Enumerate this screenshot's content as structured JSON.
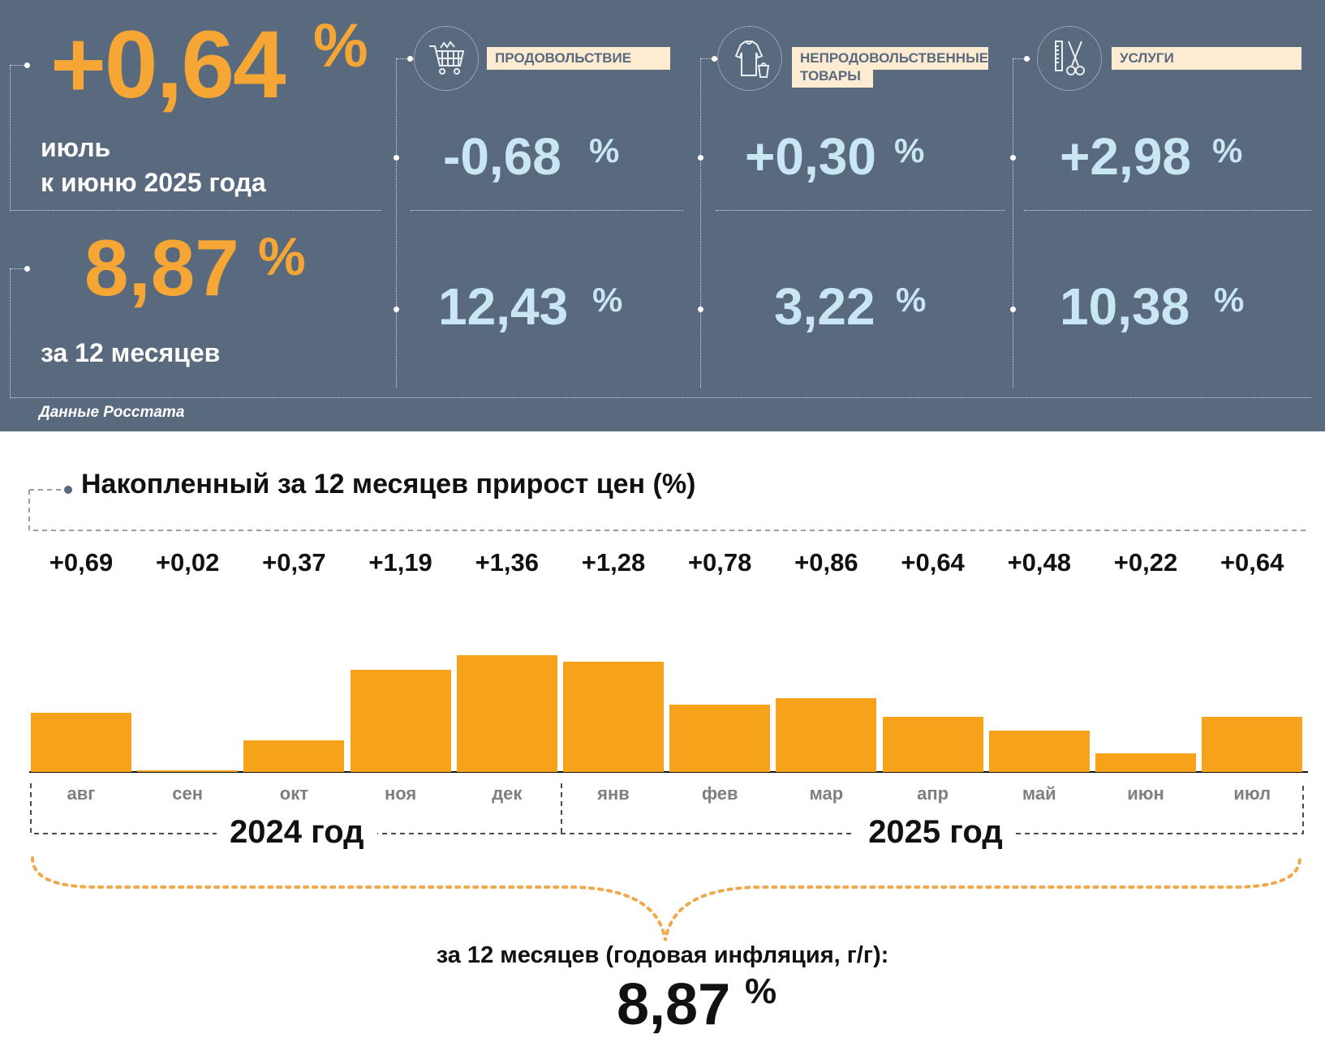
{
  "summary": {
    "month_value": "+0,64",
    "month_pct": "%",
    "month_label_line1": "июль",
    "month_label_line2": "к июню 2025 года",
    "year_value": "8,87",
    "year_pct": "%",
    "year_label": "за 12 месяцев",
    "source": "Данные Росстата",
    "accent_color": "#f6a634",
    "panel_color": "#596a7e",
    "value_color": "#c9e6f4"
  },
  "categories": [
    {
      "name": "ПРОДОВОЛЬСТВИЕ",
      "name_line2": "",
      "icon": "shopping-cart-icon",
      "month": "-0,68",
      "year": "12,43",
      "pct": "%"
    },
    {
      "name": "НЕПРОДОВОЛЬСТВЕННЫЕ",
      "name_line2": "ТОВАРЫ",
      "icon": "clothes-icon",
      "month": "+0,30",
      "year": "3,22",
      "pct": "%"
    },
    {
      "name": "УСЛУГИ",
      "name_line2": "",
      "icon": "scissors-comb-icon",
      "month": "+2,98",
      "year": "10,38",
      "pct": "%"
    }
  ],
  "chart_data": {
    "type": "bar",
    "title": "Накопленный за 12 месяцев прирост цен (%)",
    "categories": [
      "авг",
      "сен",
      "окт",
      "ноя",
      "дек",
      "янв",
      "фев",
      "мар",
      "апр",
      "май",
      "июн",
      "июл"
    ],
    "value_labels": [
      "+0,69",
      "+0,02",
      "+0,37",
      "+1,19",
      "+1,36",
      "+1,28",
      "+0,78",
      "+0,86",
      "+0,64",
      "+0,48",
      "+0,22",
      "+0,64"
    ],
    "values": [
      0.69,
      0.02,
      0.37,
      1.19,
      1.36,
      1.28,
      0.78,
      0.86,
      0.64,
      0.48,
      0.22,
      0.64
    ],
    "ylim": [
      0,
      1.36
    ],
    "bar_color": "#f7a21b",
    "year_groups": [
      {
        "label": "2024 год",
        "months": 5
      },
      {
        "label": "2025 год",
        "months": 7
      }
    ],
    "total_label": "за 12 месяцев (годовая инфляция, г/г):",
    "total_value": "8,87",
    "total_pct": "%"
  }
}
